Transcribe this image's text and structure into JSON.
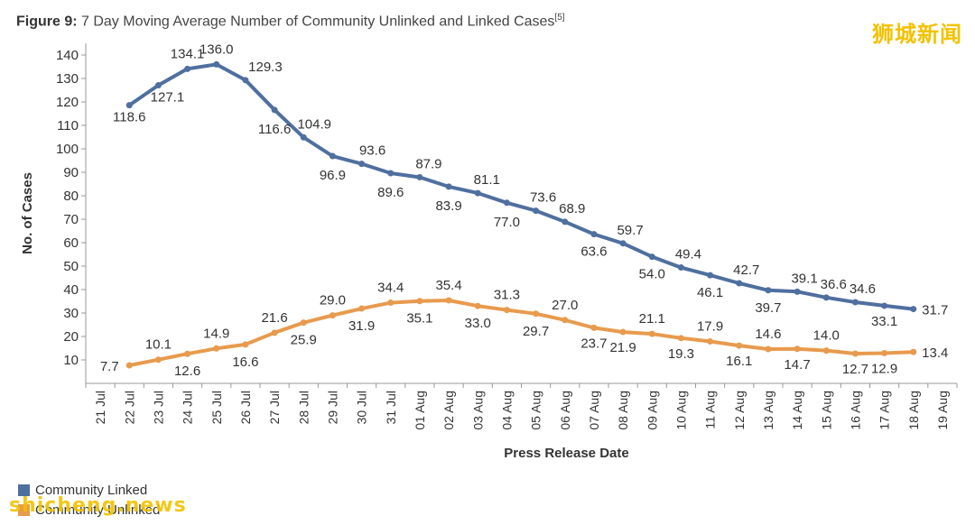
{
  "header": {
    "figure_label": "Figure 9:",
    "title_text": " 7 Day Moving Average Number of Community Unlinked and Linked Cases",
    "reference": "[5]"
  },
  "watermarks": {
    "top": "狮城新闻",
    "bottom": "shicheng.news"
  },
  "colors": {
    "linked": "#4f6f9f",
    "unlinked": "#e89a4d"
  },
  "legend": {
    "items": [
      {
        "label": "Community Linked",
        "color": "#4f6f9f"
      },
      {
        "label": "Community Unlinked",
        "color": "#e89a4d"
      }
    ]
  },
  "chart_data": {
    "type": "line",
    "title": "7 Day Moving Average Number of Community Unlinked and Linked Cases",
    "xlabel": "Press Release Date",
    "ylabel": "No. of Cases",
    "ylim": [
      0,
      145
    ],
    "yticks": [
      10,
      20,
      30,
      40,
      50,
      60,
      70,
      80,
      90,
      100,
      110,
      120,
      130,
      140
    ],
    "grid": false,
    "legend_position": "bottom-left",
    "categories": [
      "21 Jul",
      "22 Jul",
      "23 Jul",
      "24 Jul",
      "25 Jul",
      "26 Jul",
      "27 Jul",
      "28 Jul",
      "29 Jul",
      "30 Jul",
      "31 Jul",
      "01 Aug",
      "02 Aug",
      "03 Aug",
      "04 Aug",
      "05 Aug",
      "06 Aug",
      "07 Aug",
      "08 Aug",
      "09 Aug",
      "10 Aug",
      "11 Aug",
      "12 Aug",
      "13 Aug",
      "14 Aug",
      "15 Aug",
      "16 Aug",
      "17 Aug",
      "18 Aug",
      "19 Aug"
    ],
    "series": [
      {
        "name": "Community Linked",
        "values": [
          null,
          118.6,
          127.1,
          134.1,
          136.0,
          129.3,
          116.6,
          104.9,
          96.9,
          93.6,
          89.6,
          87.9,
          83.9,
          81.1,
          77.0,
          73.6,
          68.9,
          63.6,
          59.7,
          54.0,
          49.4,
          46.1,
          42.7,
          39.7,
          39.1,
          36.6,
          34.6,
          33.1,
          31.7,
          null
        ]
      },
      {
        "name": "Community Unlinked",
        "values": [
          null,
          7.7,
          10.1,
          12.6,
          14.9,
          16.6,
          21.6,
          25.9,
          29.0,
          31.9,
          34.4,
          35.1,
          35.4,
          33.0,
          31.3,
          29.7,
          27.0,
          23.7,
          21.9,
          21.1,
          19.3,
          17.9,
          16.1,
          14.6,
          14.7,
          14.0,
          12.7,
          12.9,
          13.4,
          null
        ]
      }
    ]
  }
}
